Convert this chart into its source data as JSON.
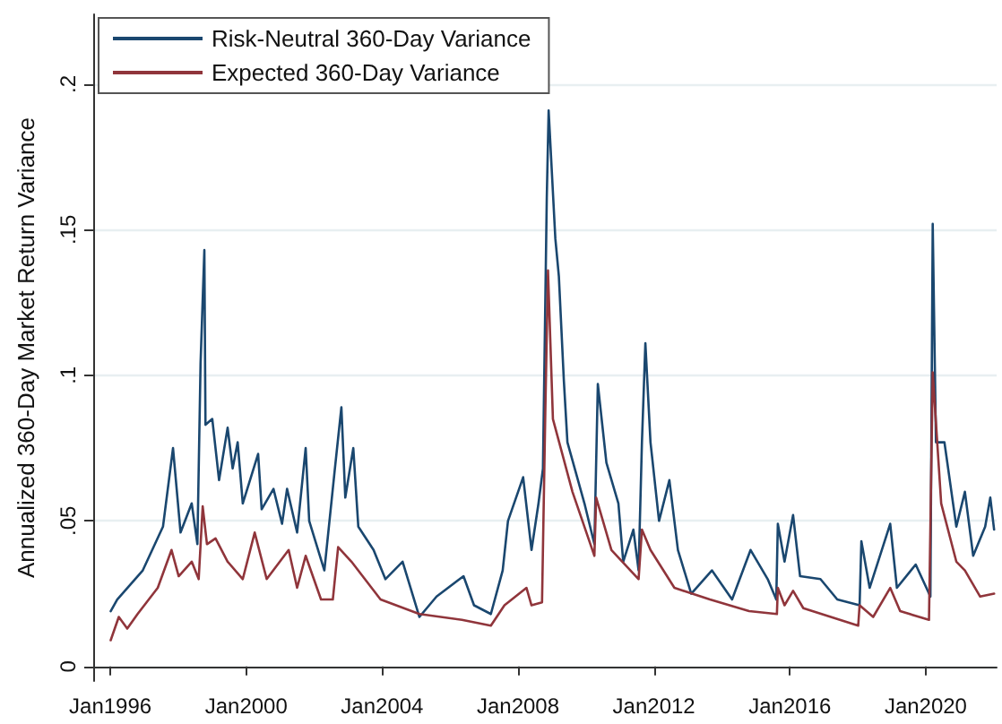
{
  "chart_data": {
    "type": "line",
    "ylabel": "Annualized 360-Day Market Return Variance",
    "xlim": [
      "1995-07",
      "2022-02"
    ],
    "xticks": [
      {
        "value": "1996-01",
        "label": "Jan1996"
      },
      {
        "value": "2000-01",
        "label": "Jan2000"
      },
      {
        "value": "2004-01",
        "label": "Jan2004"
      },
      {
        "value": "2008-01",
        "label": "Jan2008"
      },
      {
        "value": "2012-01",
        "label": "Jan2012"
      },
      {
        "value": "2016-01",
        "label": "Jan2016"
      },
      {
        "value": "2020-01",
        "label": "Jan2020"
      }
    ],
    "ylim": [
      -0.005,
      0.224
    ],
    "yticks": [
      0,
      {
        "value": 0.05,
        "label": ".05"
      },
      {
        "value": 0.1,
        "label": ".1"
      },
      {
        "value": 0.15,
        "label": ".15"
      },
      {
        "value": 0.2,
        "label": ".2"
      }
    ],
    "grid": "y",
    "legend": "top left",
    "marker": "none",
    "line_style": "solid",
    "series": [
      {
        "name": "Risk-Neutral 360-Day Variance",
        "color": "#1a476f",
        "x": [
          "1996-01-05",
          "1996-03-15",
          "1996-12-15",
          "1997-07-20",
          "1997-11-05",
          "1998-01-25",
          "1998-05-25",
          "1998-07-25",
          "1998-08-28",
          "1998-10-08",
          "1998-10-20",
          "1999-01-01",
          "1999-03-15",
          "1999-06-15",
          "1999-08-08",
          "1999-10-01",
          "1999-11-25",
          "2000-05-08",
          "2000-06-15",
          "2000-10-20",
          "2001-01-20",
          "2001-03-15",
          "2001-07-01",
          "2001-10-01",
          "2001-11-08",
          "2002-04-20",
          "2002-08-08",
          "2002-10-20",
          "2002-12-01",
          "2003-02-25",
          "2003-04-20",
          "2003-10-01",
          "2004-02-05",
          "2004-08-08",
          "2005-02-05",
          "2005-08-08",
          "2006-05-25",
          "2006-09-15",
          "2007-03-15",
          "2007-07-20",
          "2007-09-15",
          "2008-02-25",
          "2008-05-25",
          "2008-08-08",
          "2008-09-25",
          "2008-11-05",
          "2008-11-25",
          "2009-02-05",
          "2009-03-15",
          "2009-05-08",
          "2009-06-15",
          "2009-12-15",
          "2010-04-01",
          "2010-05-08",
          "2010-08-08",
          "2010-12-15",
          "2011-02-05",
          "2011-05-25",
          "2011-07-20",
          "2011-08-25",
          "2011-10-01",
          "2011-11-25",
          "2012-02-25",
          "2012-06-15",
          "2012-09-15",
          "2013-02-05",
          "2013-09-15",
          "2014-04-20",
          "2014-11-05",
          "2015-05-08",
          "2015-08-08",
          "2015-08-25",
          "2015-11-05",
          "2016-02-05",
          "2016-04-20",
          "2016-11-25",
          "2017-05-25",
          "2018-01-20",
          "2018-02-08",
          "2018-05-08",
          "2018-12-15",
          "2019-02-25",
          "2019-09-15",
          "2020-02-20",
          "2020-03-16",
          "2020-04-20",
          "2020-07-20",
          "2020-11-25",
          "2021-02-25",
          "2021-05-25",
          "2021-10-01",
          "2021-11-25",
          "2022-01-05"
        ],
        "values": [
          0.019,
          0.023,
          0.033,
          0.048,
          0.075,
          0.046,
          0.056,
          0.042,
          0.104,
          0.143,
          0.083,
          0.085,
          0.064,
          0.082,
          0.068,
          0.077,
          0.056,
          0.073,
          0.054,
          0.061,
          0.049,
          0.061,
          0.046,
          0.075,
          0.05,
          0.033,
          0.067,
          0.089,
          0.058,
          0.075,
          0.048,
          0.04,
          0.03,
          0.036,
          0.017,
          0.024,
          0.031,
          0.021,
          0.018,
          0.033,
          0.05,
          0.065,
          0.04,
          0.056,
          0.068,
          0.161,
          0.191,
          0.147,
          0.134,
          0.098,
          0.077,
          0.056,
          0.042,
          0.097,
          0.07,
          0.056,
          0.036,
          0.047,
          0.033,
          0.077,
          0.111,
          0.077,
          0.05,
          0.064,
          0.04,
          0.025,
          0.033,
          0.023,
          0.04,
          0.03,
          0.023,
          0.049,
          0.036,
          0.052,
          0.031,
          0.03,
          0.023,
          0.021,
          0.043,
          0.027,
          0.049,
          0.027,
          0.035,
          0.024,
          0.152,
          0.077,
          0.077,
          0.048,
          0.06,
          0.038,
          0.048,
          0.058,
          0.047
        ]
      },
      {
        "name": "Expected 360-Day Variance",
        "color": "#90353b",
        "x": [
          "1996-01-05",
          "1996-04-01",
          "1996-07-01",
          "1996-10-20",
          "1997-05-25",
          "1997-10-20",
          "1998-01-05",
          "1998-05-25",
          "1998-08-08",
          "1998-09-20",
          "1998-11-05",
          "1999-02-05",
          "1999-06-15",
          "1999-11-25",
          "2000-04-01",
          "2000-08-08",
          "2001-04-01",
          "2001-07-01",
          "2001-10-01",
          "2002-03-15",
          "2002-07-20",
          "2002-09-15",
          "2003-02-05",
          "2003-12-15",
          "2005-02-05",
          "2006-05-08",
          "2007-03-15",
          "2007-08-08",
          "2008-04-01",
          "2008-05-25",
          "2008-09-15",
          "2008-10-20",
          "2008-11-18",
          "2009-01-10",
          "2009-08-08",
          "2010-04-01",
          "2010-04-20",
          "2010-10-01",
          "2011-07-20",
          "2011-08-25",
          "2011-11-25",
          "2012-08-08",
          "2013-08-25",
          "2014-10-20",
          "2015-08-15",
          "2015-08-25",
          "2015-11-05",
          "2016-02-05",
          "2016-05-25",
          "2018-01-05",
          "2018-01-20",
          "2018-06-15",
          "2018-12-15",
          "2019-04-01",
          "2020-02-05",
          "2020-03-16",
          "2020-06-15",
          "2020-11-25",
          "2021-02-25",
          "2021-08-08",
          "2022-01-05"
        ],
        "values": [
          0.009,
          0.017,
          0.013,
          0.018,
          0.027,
          0.04,
          0.031,
          0.036,
          0.03,
          0.055,
          0.042,
          0.044,
          0.036,
          0.03,
          0.046,
          0.03,
          0.04,
          0.027,
          0.038,
          0.023,
          0.023,
          0.041,
          0.036,
          0.023,
          0.018,
          0.016,
          0.014,
          0.021,
          0.027,
          0.021,
          0.022,
          0.087,
          0.136,
          0.085,
          0.06,
          0.038,
          0.058,
          0.04,
          0.03,
          0.047,
          0.04,
          0.027,
          0.023,
          0.019,
          0.018,
          0.027,
          0.021,
          0.026,
          0.02,
          0.014,
          0.021,
          0.017,
          0.027,
          0.019,
          0.016,
          0.101,
          0.056,
          0.036,
          0.033,
          0.024,
          0.025
        ]
      }
    ]
  }
}
